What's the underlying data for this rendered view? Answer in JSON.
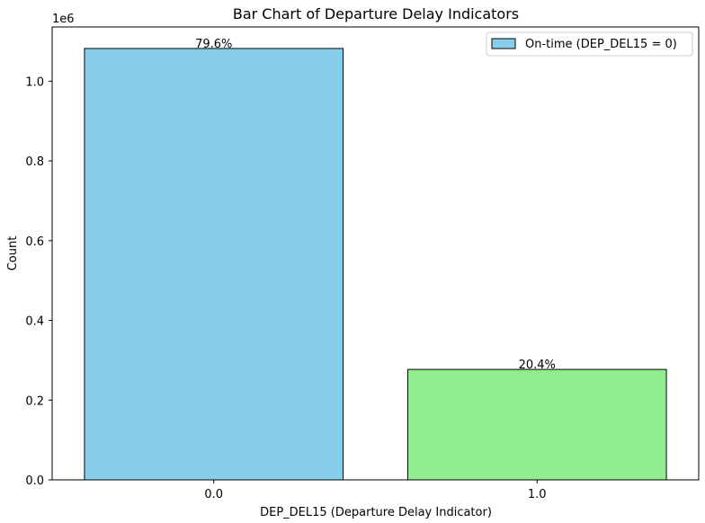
{
  "chart_data": {
    "type": "bar",
    "title": "Bar Chart of Departure Delay Indicators",
    "xlabel": "DEP_DEL15 (Departure Delay Indicator)",
    "ylabel": "Count",
    "y_offset_label": "1e6",
    "categories": [
      "0.0",
      "1.0"
    ],
    "values": [
      1082000,
      277000
    ],
    "bar_labels": [
      "79.6%",
      "20.4%"
    ],
    "bar_colors": [
      "#87ceeb",
      "#90ee90"
    ],
    "ylim": [
      0,
      1136000
    ],
    "yticks": [
      0,
      200000,
      400000,
      600000,
      800000,
      1000000
    ],
    "ytick_labels": [
      "0.0",
      "0.2",
      "0.4",
      "0.6",
      "0.8",
      "1.0"
    ],
    "grid": false,
    "legend": {
      "placement": "top-right",
      "entries": [
        {
          "label": "On-time (DEP_DEL15 = 0)",
          "color": "#87ceeb"
        }
      ]
    }
  }
}
